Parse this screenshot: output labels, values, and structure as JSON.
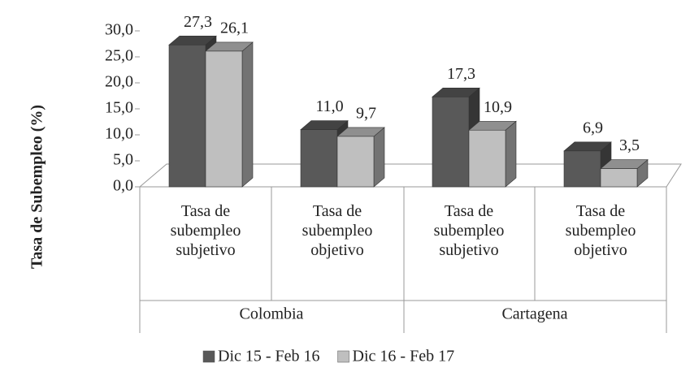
{
  "chart_data": {
    "type": "bar3d",
    "y_label": "Tasa de Subempleo (%)",
    "categories": [
      "Tasa de subempleo subjetivo",
      "Tasa de subempleo objetivo",
      "Tasa de subempleo subjetivo",
      "Tasa de subempleo objetivo"
    ],
    "groups": [
      {
        "name": "Colombia",
        "span": 2
      },
      {
        "name": "Cartagena",
        "span": 2
      }
    ],
    "series": [
      {
        "name": "Dic 15 - Feb 16",
        "color": "#595959",
        "values": [
          27.3,
          11.0,
          17.3,
          6.9
        ],
        "value_labels": [
          "27,3",
          "11,0",
          "17,3",
          "6,9"
        ]
      },
      {
        "name": "Dic 16 - Feb 17",
        "color": "#bfbfbf",
        "values": [
          26.1,
          9.7,
          10.9,
          3.5
        ],
        "value_labels": [
          "26,1",
          "9,7",
          "10,9",
          "3,5"
        ]
      }
    ],
    "ylim": [
      0,
      30
    ],
    "yticks": [
      {
        "value": 0,
        "label": "0,0"
      },
      {
        "value": 5,
        "label": "5,0"
      },
      {
        "value": 10,
        "label": "10,0"
      },
      {
        "value": 15,
        "label": "15,0"
      },
      {
        "value": 20,
        "label": "20,0"
      },
      {
        "value": 25,
        "label": "25,0"
      },
      {
        "value": 30,
        "label": "30,0"
      }
    ],
    "legend": "bottom"
  }
}
